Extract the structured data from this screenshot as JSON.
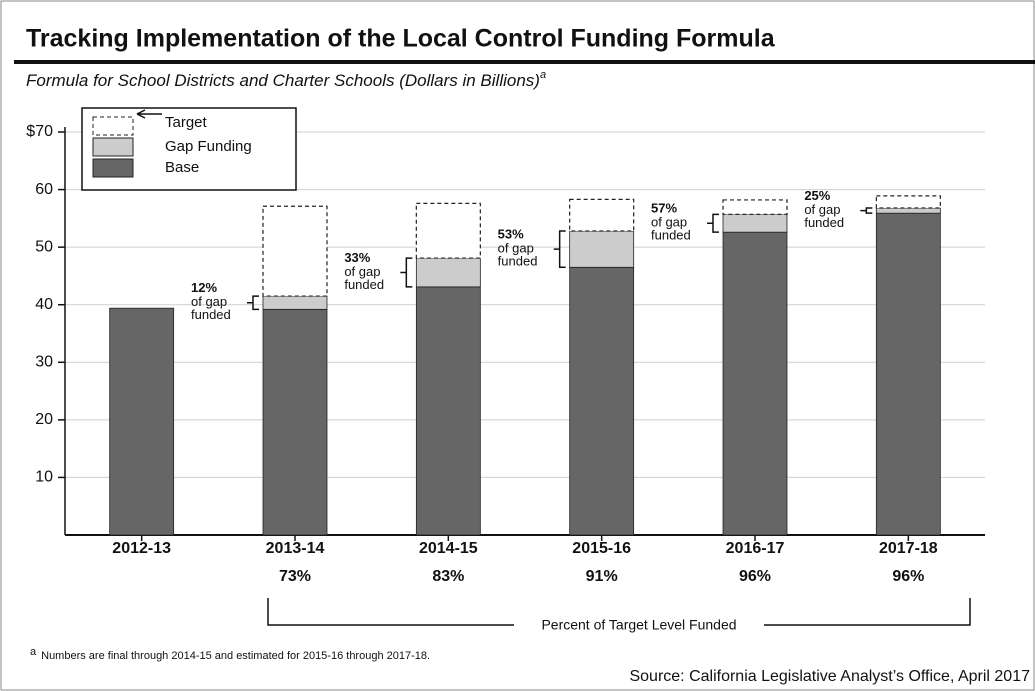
{
  "chart_data": {
    "type": "stacked_bar",
    "title": "Tracking Implementation of the Local Control Funding Formula",
    "subtitle": "Formula for School Districts and Charter Schools (Dollars in Billions)",
    "subtitle_note_mark": "a",
    "categories": [
      "2012-13",
      "2013-14",
      "2014-15",
      "2015-16",
      "2016-17",
      "2017-18"
    ],
    "series": [
      {
        "name": "Base",
        "color": "#666666",
        "values": [
          39.4,
          39.2,
          43.1,
          46.5,
          52.6,
          55.9
        ]
      },
      {
        "name": "Gap Funding",
        "color": "#cccccc",
        "values": [
          null,
          2.3,
          5.0,
          6.3,
          3.1,
          0.9
        ]
      },
      {
        "name": "Target",
        "color": "#ffffff",
        "dashed": true,
        "values": [
          null,
          15.6,
          9.5,
          5.5,
          2.5,
          2.1
        ]
      }
    ],
    "gap_funded": {
      "values": [
        null,
        12,
        33,
        53,
        57,
        25
      ],
      "value_labels": [
        null,
        "12%",
        "33%",
        "53%",
        "57%",
        "25%"
      ],
      "line_2": "of gap",
      "line_3": "funded"
    },
    "percent_of_target": {
      "label": "Percent of Target Level Funded",
      "values": [
        null,
        73,
        83,
        91,
        96,
        96
      ],
      "value_labels": [
        null,
        "73%",
        "83%",
        "91%",
        "96%",
        "96%"
      ]
    },
    "ylim": [
      0,
      70
    ],
    "yticks": [
      10,
      20,
      30,
      40,
      50,
      60,
      {
        "value": 70,
        "label": "$70"
      }
    ],
    "grid": true,
    "legend": "top-left",
    "footnote_mark": "a",
    "footnote": "Numbers are final through 2014-15 and estimated for 2015-16 through 2017-18.",
    "source": "Source: California Legislative Analyst’s Office, April 2017"
  }
}
